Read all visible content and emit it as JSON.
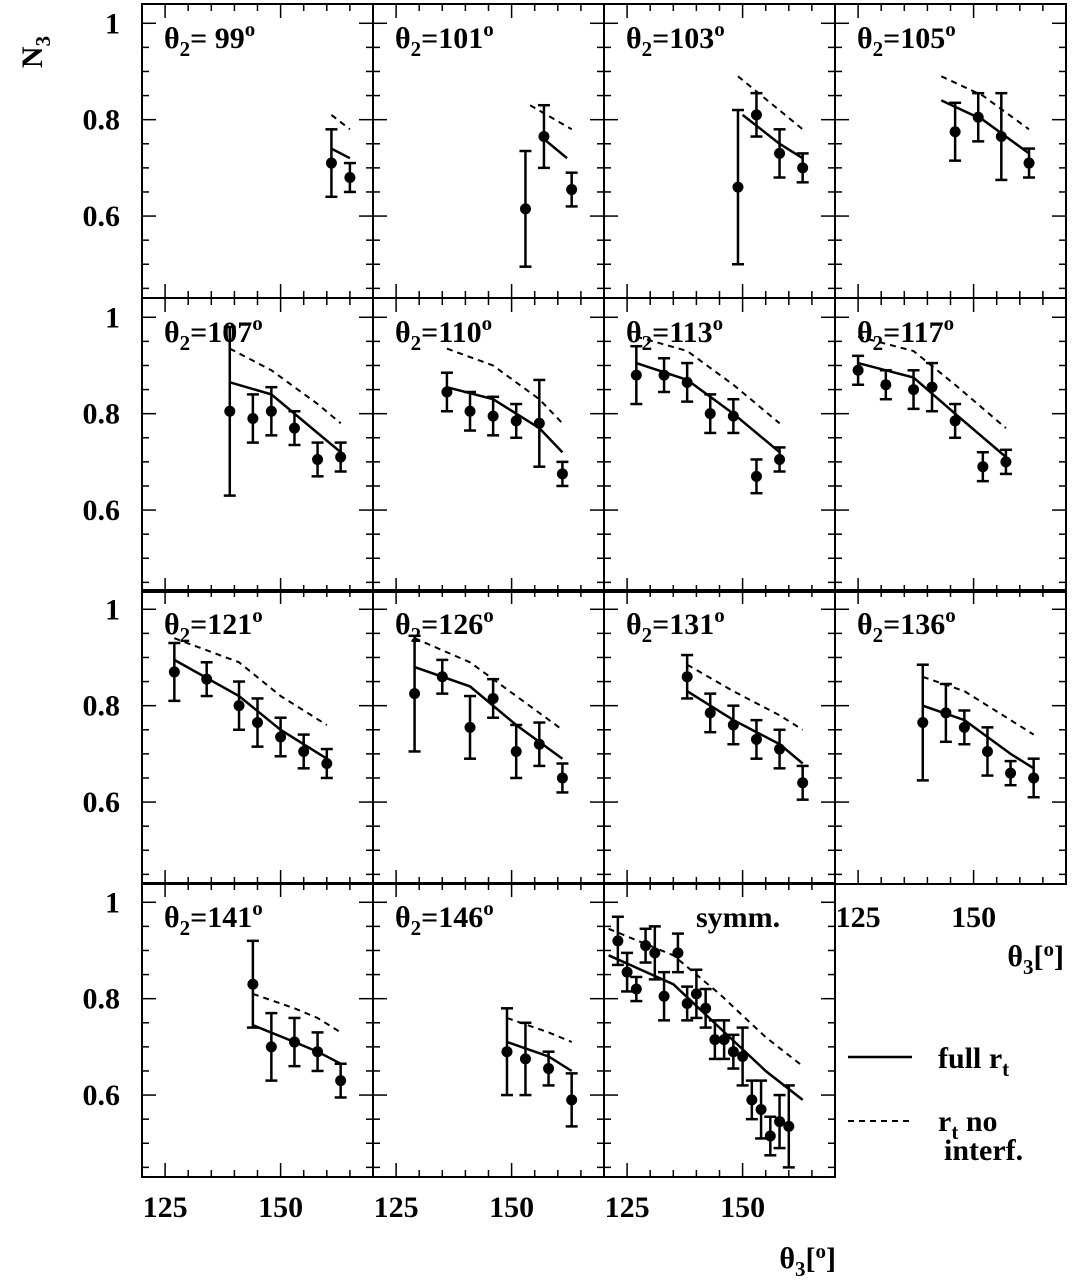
{
  "chart_data": {
    "type": "scatter",
    "ylabel": "N3",
    "xlabel": "θ3[o]",
    "xlim": [
      120,
      170
    ],
    "ylim": [
      0.43,
      1.04
    ],
    "y_ticks": [
      "1",
      "0.8",
      "0.6"
    ],
    "x_ticks": [
      "125",
      "150"
    ],
    "legend": {
      "entries": [
        {
          "label": "full r",
          "sub": "t",
          "style": "solid"
        },
        {
          "label": "r",
          "sub": "t",
          "label2": "no",
          "label3": "interf.",
          "style": "dashed"
        }
      ],
      "placement": "bottom-right"
    },
    "panels": [
      {
        "label": "θ2= 99o",
        "points": [
          [
            161,
            0.71,
            0.07
          ],
          [
            165,
            0.68,
            0.03
          ]
        ],
        "full": [
          [
            161,
            0.74
          ],
          [
            165,
            0.72
          ]
        ],
        "noint": [
          [
            161,
            0.81
          ],
          [
            165,
            0.78
          ]
        ]
      },
      {
        "label": "θ2=101o",
        "points": [
          [
            153,
            0.615,
            0.12
          ],
          [
            157,
            0.765,
            0.065
          ],
          [
            163,
            0.655,
            0.035
          ]
        ],
        "full": [
          [
            157,
            0.76
          ],
          [
            162,
            0.72
          ]
        ],
        "noint": [
          [
            154,
            0.83
          ],
          [
            163,
            0.78
          ]
        ]
      },
      {
        "label": "θ2=103o",
        "points": [
          [
            149,
            0.66,
            0.16
          ],
          [
            153,
            0.81,
            0.045
          ],
          [
            158,
            0.73,
            0.05
          ],
          [
            163,
            0.7,
            0.03
          ]
        ],
        "full": [
          [
            150,
            0.81
          ],
          [
            158,
            0.75
          ],
          [
            163,
            0.72
          ]
        ],
        "noint": [
          [
            149,
            0.89
          ],
          [
            163,
            0.78
          ]
        ]
      },
      {
        "label": "θ2=105o",
        "points": [
          [
            146,
            0.775,
            0.06
          ],
          [
            151,
            0.805,
            0.05
          ],
          [
            156,
            0.765,
            0.09
          ],
          [
            162,
            0.71,
            0.03
          ]
        ],
        "full": [
          [
            143,
            0.84
          ],
          [
            152,
            0.8
          ],
          [
            162,
            0.73
          ]
        ],
        "noint": [
          [
            143,
            0.89
          ],
          [
            152,
            0.85
          ],
          [
            162,
            0.78
          ]
        ]
      },
      {
        "label": "θ2=107o",
        "points": [
          [
            139,
            0.805,
            0.175
          ],
          [
            144,
            0.79,
            0.05
          ],
          [
            148,
            0.805,
            0.05
          ],
          [
            153,
            0.77,
            0.035
          ],
          [
            158,
            0.705,
            0.035
          ],
          [
            163,
            0.71,
            0.03
          ]
        ],
        "full": [
          [
            139,
            0.865
          ],
          [
            148,
            0.84
          ],
          [
            158,
            0.76
          ],
          [
            163,
            0.72
          ]
        ],
        "noint": [
          [
            139,
            0.935
          ],
          [
            148,
            0.89
          ],
          [
            158,
            0.82
          ],
          [
            163,
            0.78
          ]
        ]
      },
      {
        "label": "θ2=110o",
        "points": [
          [
            136,
            0.845,
            0.04
          ],
          [
            141,
            0.805,
            0.04
          ],
          [
            146,
            0.795,
            0.04
          ],
          [
            151,
            0.785,
            0.035
          ],
          [
            156,
            0.78,
            0.09
          ],
          [
            161,
            0.675,
            0.025
          ]
        ],
        "full": [
          [
            136,
            0.855
          ],
          [
            146,
            0.83
          ],
          [
            156,
            0.77
          ],
          [
            161,
            0.72
          ]
        ],
        "noint": [
          [
            136,
            0.935
          ],
          [
            146,
            0.9
          ],
          [
            156,
            0.83
          ],
          [
            161,
            0.78
          ]
        ]
      },
      {
        "label": "θ2=113o",
        "points": [
          [
            127,
            0.88,
            0.06
          ],
          [
            133,
            0.88,
            0.035
          ],
          [
            138,
            0.865,
            0.04
          ],
          [
            143,
            0.8,
            0.04
          ],
          [
            148,
            0.795,
            0.035
          ],
          [
            153,
            0.67,
            0.035
          ],
          [
            158,
            0.705,
            0.025
          ]
        ],
        "full": [
          [
            127,
            0.905
          ],
          [
            138,
            0.87
          ],
          [
            148,
            0.8
          ],
          [
            158,
            0.72
          ]
        ],
        "noint": [
          [
            127,
            0.96
          ],
          [
            138,
            0.93
          ],
          [
            148,
            0.86
          ],
          [
            158,
            0.78
          ]
        ]
      },
      {
        "label": "θ2=117o",
        "points": [
          [
            125,
            0.89,
            0.03
          ],
          [
            131,
            0.86,
            0.03
          ],
          [
            137,
            0.85,
            0.04
          ],
          [
            141,
            0.855,
            0.05
          ],
          [
            146,
            0.785,
            0.035
          ],
          [
            152,
            0.69,
            0.03
          ],
          [
            157,
            0.7,
            0.025
          ]
        ],
        "full": [
          [
            125,
            0.905
          ],
          [
            137,
            0.875
          ],
          [
            146,
            0.8
          ],
          [
            157,
            0.71
          ]
        ],
        "noint": [
          [
            125,
            0.96
          ],
          [
            137,
            0.93
          ],
          [
            146,
            0.86
          ],
          [
            157,
            0.77
          ]
        ]
      },
      {
        "label": "θ2=121o",
        "points": [
          [
            127,
            0.87,
            0.06
          ],
          [
            134,
            0.855,
            0.035
          ],
          [
            141,
            0.8,
            0.05
          ],
          [
            145,
            0.765,
            0.05
          ],
          [
            150,
            0.735,
            0.04
          ],
          [
            155,
            0.705,
            0.035
          ],
          [
            160,
            0.68,
            0.03
          ]
        ],
        "full": [
          [
            127,
            0.895
          ],
          [
            141,
            0.82
          ],
          [
            150,
            0.75
          ],
          [
            160,
            0.69
          ]
        ],
        "noint": [
          [
            127,
            0.94
          ],
          [
            141,
            0.89
          ],
          [
            150,
            0.82
          ],
          [
            160,
            0.76
          ]
        ]
      },
      {
        "label": "θ2=126o",
        "points": [
          [
            129,
            0.825,
            0.12
          ],
          [
            135,
            0.86,
            0.035
          ],
          [
            141,
            0.755,
            0.065
          ],
          [
            146,
            0.815,
            0.04
          ],
          [
            151,
            0.705,
            0.055
          ],
          [
            156,
            0.72,
            0.045
          ],
          [
            161,
            0.65,
            0.03
          ]
        ],
        "full": [
          [
            129,
            0.88
          ],
          [
            141,
            0.84
          ],
          [
            151,
            0.76
          ],
          [
            161,
            0.69
          ]
        ],
        "noint": [
          [
            129,
            0.94
          ],
          [
            141,
            0.89
          ],
          [
            151,
            0.82
          ],
          [
            161,
            0.75
          ]
        ]
      },
      {
        "label": "θ2=131o",
        "points": [
          [
            138,
            0.86,
            0.045
          ],
          [
            143,
            0.785,
            0.04
          ],
          [
            148,
            0.76,
            0.04
          ],
          [
            153,
            0.73,
            0.04
          ],
          [
            158,
            0.71,
            0.04
          ],
          [
            163,
            0.64,
            0.035
          ]
        ],
        "full": [
          [
            138,
            0.83
          ],
          [
            148,
            0.77
          ],
          [
            158,
            0.72
          ],
          [
            163,
            0.68
          ]
        ],
        "noint": [
          [
            138,
            0.885
          ],
          [
            148,
            0.83
          ],
          [
            158,
            0.78
          ],
          [
            163,
            0.75
          ]
        ]
      },
      {
        "label": "θ2=136o",
        "points": [
          [
            139,
            0.765,
            0.12
          ],
          [
            144,
            0.785,
            0.06
          ],
          [
            148,
            0.755,
            0.035
          ],
          [
            153,
            0.705,
            0.05
          ],
          [
            158,
            0.66,
            0.025
          ],
          [
            163,
            0.65,
            0.04
          ]
        ],
        "full": [
          [
            139,
            0.8
          ],
          [
            148,
            0.77
          ],
          [
            158,
            0.7
          ],
          [
            163,
            0.67
          ]
        ],
        "noint": [
          [
            139,
            0.86
          ],
          [
            148,
            0.83
          ],
          [
            158,
            0.77
          ],
          [
            163,
            0.74
          ]
        ]
      },
      {
        "label": "θ2=141o",
        "points": [
          [
            144,
            0.83,
            0.09
          ],
          [
            148,
            0.7,
            0.07
          ],
          [
            153,
            0.71,
            0.05
          ],
          [
            158,
            0.69,
            0.04
          ],
          [
            163,
            0.63,
            0.035
          ]
        ],
        "full": [
          [
            144,
            0.745
          ],
          [
            153,
            0.71
          ],
          [
            158,
            0.69
          ],
          [
            163,
            0.665
          ]
        ],
        "noint": [
          [
            144,
            0.81
          ],
          [
            153,
            0.78
          ],
          [
            158,
            0.76
          ],
          [
            163,
            0.73
          ]
        ]
      },
      {
        "label": "θ2=146o",
        "points": [
          [
            149,
            0.69,
            0.09
          ],
          [
            153,
            0.675,
            0.075
          ],
          [
            158,
            0.655,
            0.035
          ],
          [
            163,
            0.59,
            0.055
          ]
        ],
        "full": [
          [
            149,
            0.71
          ],
          [
            158,
            0.68
          ],
          [
            163,
            0.65
          ]
        ],
        "noint": [
          [
            149,
            0.76
          ],
          [
            158,
            0.73
          ],
          [
            163,
            0.71
          ]
        ]
      },
      {
        "label": "symm.",
        "points": [
          [
            123,
            0.92,
            0.05
          ],
          [
            125,
            0.855,
            0.04
          ],
          [
            127,
            0.82,
            0.025
          ],
          [
            129,
            0.91,
            0.035
          ],
          [
            131,
            0.895,
            0.055
          ],
          [
            133,
            0.805,
            0.05
          ],
          [
            136,
            0.895,
            0.04
          ],
          [
            138,
            0.79,
            0.035
          ],
          [
            140,
            0.81,
            0.05
          ],
          [
            142,
            0.78,
            0.04
          ],
          [
            144,
            0.715,
            0.04
          ],
          [
            146,
            0.715,
            0.04
          ],
          [
            148,
            0.69,
            0.035
          ],
          [
            150,
            0.68,
            0.06
          ],
          [
            152,
            0.59,
            0.04
          ],
          [
            154,
            0.57,
            0.06
          ],
          [
            156,
            0.515,
            0.04
          ],
          [
            158,
            0.545,
            0.055
          ],
          [
            160,
            0.535,
            0.085
          ]
        ],
        "full": [
          [
            121,
            0.89
          ],
          [
            135,
            0.83
          ],
          [
            145,
            0.74
          ],
          [
            155,
            0.65
          ],
          [
            163,
            0.59
          ]
        ],
        "noint": [
          [
            121,
            0.945
          ],
          [
            135,
            0.89
          ],
          [
            145,
            0.81
          ],
          [
            155,
            0.72
          ],
          [
            163,
            0.66
          ]
        ]
      }
    ],
    "extra_ticks": {
      "row": 3,
      "labels": [
        "125",
        "150"
      ],
      "xlabel": "θ3[o]"
    }
  }
}
